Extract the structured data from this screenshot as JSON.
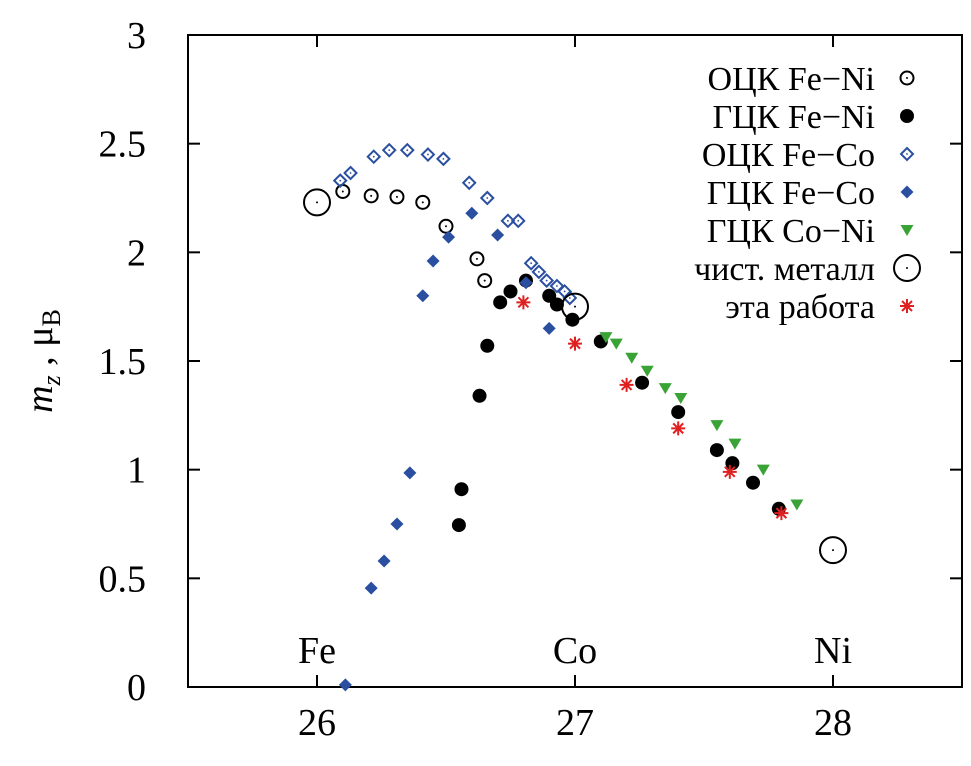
{
  "chart_data": {
    "type": "scatter",
    "xlim": [
      25.5,
      28.5
    ],
    "ylim": [
      0,
      3
    ],
    "xticks": [
      "26",
      "27",
      "28"
    ],
    "yticks": [
      "0",
      "0.5",
      "1",
      "1.5",
      "2",
      "2.5",
      "3"
    ],
    "xlabel": "",
    "ylabel": {
      "main": "m",
      "sub": "z",
      "sep": " , ",
      "unit": "μ",
      "unit_sub": "B"
    },
    "grid": false,
    "legend_position": "top-right",
    "annotations": [
      {
        "text": "Fe",
        "x": 26.0,
        "y": 0.17
      },
      {
        "text": "Co",
        "x": 27.0,
        "y": 0.17
      },
      {
        "text": "Ni",
        "x": 28.0,
        "y": 0.17
      }
    ],
    "series": [
      {
        "name": "ОЦК Fe−Ni",
        "marker": "open-circle",
        "color": "#000000",
        "x": [
          26.1,
          26.21,
          26.31,
          26.41,
          26.5,
          26.62,
          26.65
        ],
        "y": [
          2.28,
          2.26,
          2.255,
          2.23,
          2.12,
          1.97,
          1.87
        ]
      },
      {
        "name": "ГЦК Fe−Ni",
        "marker": "filled-circle",
        "color": "#000000",
        "x": [
          26.55,
          26.56,
          26.63,
          26.66,
          26.71,
          26.75,
          26.81,
          26.9,
          26.93,
          26.99,
          27.1,
          27.26,
          27.4,
          27.55,
          27.61,
          27.69,
          27.79
        ],
        "y": [
          0.745,
          0.91,
          1.34,
          1.57,
          1.77,
          1.82,
          1.87,
          1.8,
          1.76,
          1.69,
          1.59,
          1.4,
          1.265,
          1.09,
          1.03,
          0.94,
          0.82
        ]
      },
      {
        "name": "ОЦК Fe−Co",
        "marker": "open-diamond",
        "color": "#2b4fa0",
        "x": [
          26.09,
          26.13,
          26.22,
          26.28,
          26.35,
          26.43,
          26.49,
          26.59,
          26.66,
          26.74,
          26.78,
          26.83,
          26.86,
          26.89,
          26.93,
          26.96,
          26.98
        ],
        "y": [
          2.33,
          2.365,
          2.44,
          2.47,
          2.47,
          2.45,
          2.43,
          2.32,
          2.25,
          2.145,
          2.145,
          1.95,
          1.91,
          1.87,
          1.845,
          1.82,
          1.79
        ]
      },
      {
        "name": "ГЦК Fe−Co",
        "marker": "filled-diamond",
        "color": "#2b4fa0",
        "x": [
          26.11,
          26.21,
          26.26,
          26.31,
          26.36,
          26.41,
          26.45,
          26.51,
          26.6,
          26.7,
          26.81,
          26.9
        ],
        "y": [
          0.01,
          0.455,
          0.58,
          0.75,
          0.985,
          1.8,
          1.96,
          2.07,
          2.18,
          2.08,
          1.86,
          1.65
        ]
      },
      {
        "name": "ГЦК Co−Ni",
        "marker": "filled-triangle-down",
        "color": "#3aa335",
        "x": [
          27.12,
          27.16,
          27.22,
          27.28,
          27.35,
          27.41,
          27.55,
          27.62,
          27.73,
          27.86
        ],
        "y": [
          1.61,
          1.58,
          1.515,
          1.455,
          1.375,
          1.33,
          1.205,
          1.12,
          1.0,
          0.84
        ]
      },
      {
        "name": "чист. металл",
        "marker": "big-open-circle",
        "color": "#000000",
        "x": [
          26.0,
          27.0,
          28.0
        ],
        "y": [
          2.23,
          1.75,
          0.63
        ]
      },
      {
        "name": "эта работа",
        "marker": "star",
        "color": "#e02020",
        "x": [
          26.8,
          27.0,
          27.2,
          27.4,
          27.6,
          27.8
        ],
        "y": [
          1.77,
          1.58,
          1.39,
          1.19,
          0.99,
          0.8
        ]
      }
    ]
  }
}
